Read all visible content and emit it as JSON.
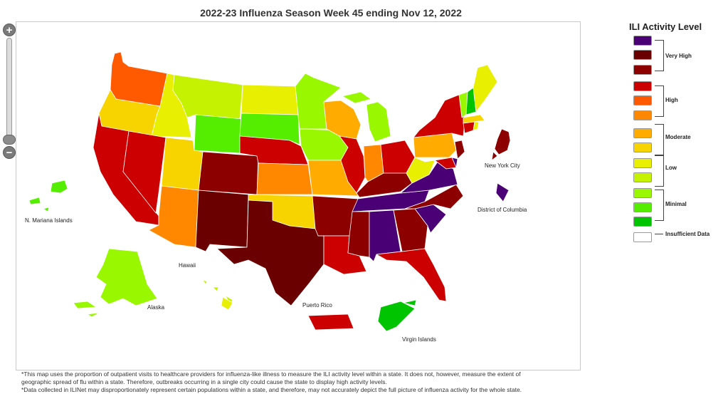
{
  "title": "2022-23 Influenza Season Week 45 ending Nov 12, 2022",
  "zoom": {
    "in_label": "+",
    "out_label": "−"
  },
  "legend": {
    "title": "ILI Activity Level",
    "colors": [
      "#4a0074",
      "#6a0000",
      "#8c0000",
      "#cc0000",
      "#ff5a00",
      "#ff8800",
      "#ffab00",
      "#f7d400",
      "#e8ef00",
      "#c4f200",
      "#99f700",
      "#55ee00",
      "#00c400",
      "#ffffff"
    ],
    "groups": [
      "Very High",
      "High",
      "Moderate",
      "Low",
      "Minimal",
      "Insufficient Data"
    ]
  },
  "map_labels": {
    "nmi": "N. Mariana Islands",
    "hawaii": "Hawaii",
    "alaska": "Alaska",
    "pr": "Puerto Rico",
    "vi": "Virgin Islands",
    "nyc": "New York City",
    "dc": "District of Columbia"
  },
  "notes": [
    "*This map uses the proportion of outpatient visits to healthcare providers for influenza-like illness to measure the ILI activity level within a state. It does not, however, measure the extent of",
    "geographic spread of flu within a state. Therefore, outbreaks occurring in a single city could cause the state to display high activity levels.",
    "*Data collected in ILINet may disproportionately represent certain populations within a state, and therefore, may not accurately depict the full picture of influenza activity for the whole state."
  ]
}
